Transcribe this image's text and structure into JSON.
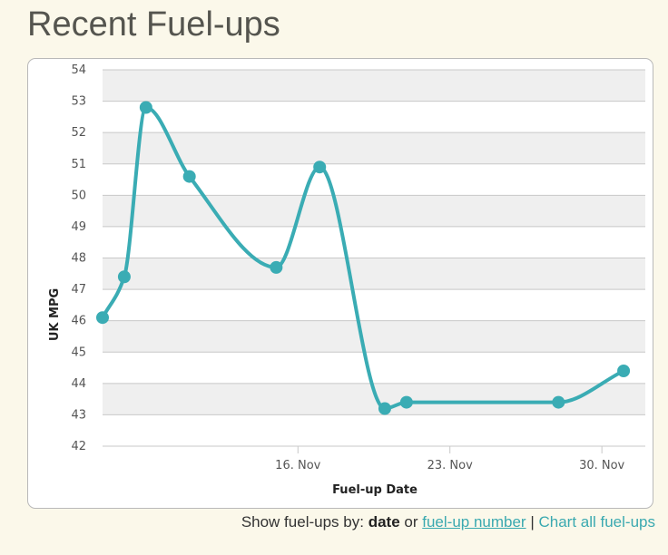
{
  "page": {
    "title": "Recent Fuel-ups"
  },
  "footer": {
    "show_by_label": "Show fuel-ups by:",
    "date_label": "date",
    "or_label": "or",
    "fuelup_number_link": "fuel-up number",
    "separator": "|",
    "chart_all_link": "Chart all fuel-ups"
  },
  "colors": {
    "series": "#3aacb4",
    "band": "#efefef",
    "grid": "#c8c8c8",
    "link": "#3aa9b0"
  },
  "chart_data": {
    "type": "line",
    "title": "",
    "xlabel": "Fuel-up Date",
    "ylabel": "UK MPG",
    "x_axis_type": "date",
    "xlim": [
      "2013-11-07",
      "2013-12-02"
    ],
    "ylim": [
      42,
      54
    ],
    "grid": true,
    "alternating_bands": true,
    "smooth": true,
    "y_ticks": [
      42,
      43,
      44,
      45,
      46,
      47,
      48,
      49,
      50,
      51,
      52,
      53,
      54
    ],
    "x_ticks": [
      {
        "date": "2013-11-16",
        "label": "16. Nov"
      },
      {
        "date": "2013-11-23",
        "label": "23. Nov"
      },
      {
        "date": "2013-11-30",
        "label": "30. Nov"
      }
    ],
    "series": [
      {
        "points": [
          {
            "date": "2013-11-07",
            "value": 46.1
          },
          {
            "date": "2013-11-08",
            "value": 47.4
          },
          {
            "date": "2013-11-09",
            "value": 52.8
          },
          {
            "date": "2013-11-11",
            "value": 50.6
          },
          {
            "date": "2013-11-15",
            "value": 47.7
          },
          {
            "date": "2013-11-17",
            "value": 50.9
          },
          {
            "date": "2013-11-20",
            "value": 43.2
          },
          {
            "date": "2013-11-21",
            "value": 43.4
          },
          {
            "date": "2013-11-28",
            "value": 43.4
          },
          {
            "date": "2013-12-01",
            "value": 44.4
          }
        ]
      }
    ]
  }
}
